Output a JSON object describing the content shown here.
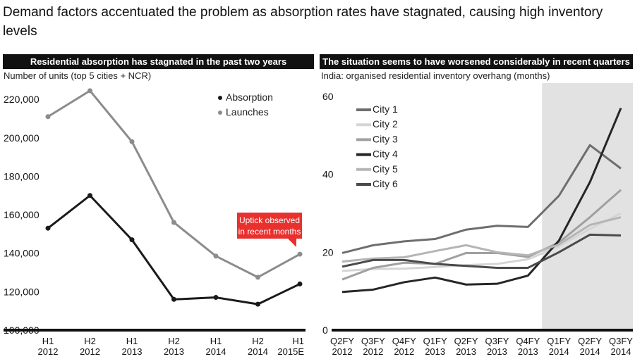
{
  "headline": "Demand factors accentuated the problem as absorption rates have stagnated, causing high inventory levels",
  "left_panel": {
    "title": "Residential absorption has stagnated in the past two years",
    "subtitle": "Number of units (top 5 cities + NCR)"
  },
  "right_panel": {
    "title": "The situation seems to have worsened considerably in recent quarters",
    "subtitle": "India: organised residential inventory overhang (months)"
  },
  "chart_data": [
    {
      "type": "line",
      "title": "Residential absorption has stagnated in the past two years",
      "ylabel": "Number of units (top 5 cities + NCR)",
      "categories": [
        [
          "H1",
          "2012"
        ],
        [
          "H2",
          "2012"
        ],
        [
          "H1",
          "2013"
        ],
        [
          "H2",
          "2013"
        ],
        [
          "H1",
          "2014"
        ],
        [
          "H2",
          "2014"
        ],
        [
          "H1",
          "2015E"
        ]
      ],
      "ylim": [
        100000,
        225000
      ],
      "yticks": [
        100000,
        120000,
        140000,
        160000,
        180000,
        200000,
        220000
      ],
      "ytick_labels": [
        "100,000",
        "120,000",
        "140,000",
        "160,000",
        "180,000",
        "200,000",
        "220,000"
      ],
      "series": [
        {
          "name": "Absorption",
          "color": "#1a1a1a",
          "values": [
            153000,
            170000,
            147000,
            116000,
            117000,
            113500,
            124000
          ]
        },
        {
          "name": "Launches",
          "color": "#8c8c8c",
          "values": [
            211000,
            224500,
            198000,
            156000,
            138500,
            127500,
            139500
          ]
        }
      ],
      "annotation": {
        "text": [
          "Uptick observed",
          "in recent months"
        ],
        "color": "#e8312e"
      },
      "legend": "top-right"
    },
    {
      "type": "line",
      "title": "The situation seems to have worsened considerably in recent quarters",
      "ylabel": "India: organised residential inventory overhang (months)",
      "categories": [
        [
          "Q2FY",
          "2012"
        ],
        [
          "Q3FY",
          "2012"
        ],
        [
          "Q4FY",
          "2012"
        ],
        [
          "Q1FY",
          "2013"
        ],
        [
          "Q2FY",
          "2013"
        ],
        [
          "Q3FY",
          "2013"
        ],
        [
          "Q4FY",
          "2013"
        ],
        [
          "Q1FY",
          "2014"
        ],
        [
          "Q2FY",
          "2014"
        ],
        [
          "Q3FY",
          "2014"
        ]
      ],
      "ylim": [
        0,
        60
      ],
      "yticks": [
        0,
        20,
        40,
        60
      ],
      "ytick_labels": [
        "0",
        "20",
        "40",
        "60"
      ],
      "shaded_from_index": 6.5,
      "shade_color": "#e2e2e2",
      "series": [
        {
          "name": "City 1",
          "color": "#6e6e6e",
          "values": [
            19.8,
            21.8,
            22.8,
            23.4,
            25.8,
            26.8,
            26.5,
            34.5,
            47.5,
            41.5
          ]
        },
        {
          "name": "City 2",
          "color": "#d5d5d5",
          "values": [
            15.2,
            15.7,
            15.8,
            16.2,
            16.7,
            17.0,
            18.2,
            21.5,
            26.0,
            30.0
          ]
        },
        {
          "name": "City 3",
          "color": "#a0a0a0",
          "values": [
            13.0,
            16.0,
            17.3,
            17.0,
            19.8,
            19.8,
            18.8,
            22.5,
            29.0,
            36.0
          ]
        },
        {
          "name": "City 4",
          "color": "#262626",
          "values": [
            9.8,
            10.4,
            12.3,
            13.5,
            11.7,
            11.9,
            14.0,
            23.0,
            38.0,
            57.0
          ]
        },
        {
          "name": "City 5",
          "color": "#b5b5b5",
          "values": [
            17.6,
            18.4,
            18.7,
            20.3,
            21.8,
            20.0,
            19.2,
            22.0,
            27.0,
            29.0
          ]
        },
        {
          "name": "City 6",
          "color": "#4a4a4a",
          "values": [
            16.3,
            18.0,
            18.0,
            17.0,
            16.5,
            16.0,
            16.0,
            20.0,
            24.5,
            24.3
          ]
        }
      ],
      "legend": "top-left"
    }
  ]
}
